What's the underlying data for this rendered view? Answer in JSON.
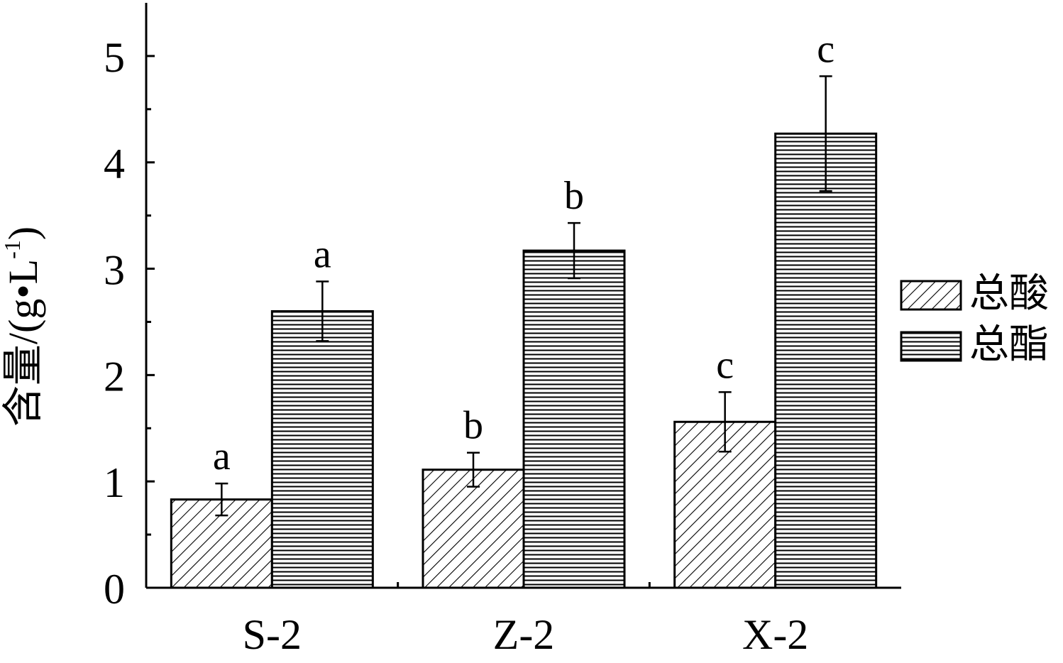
{
  "chart_data": {
    "type": "bar",
    "categories": [
      "S-2",
      "Z-2",
      "X-2"
    ],
    "series": [
      {
        "name": "总酸",
        "pattern": "diagonal-hatch",
        "values": [
          0.83,
          1.11,
          1.56
        ],
        "errors": [
          0.15,
          0.16,
          0.28
        ],
        "letters": [
          "a",
          "b",
          "c"
        ]
      },
      {
        "name": "总酯",
        "pattern": "horizontal-hatch",
        "values": [
          2.6,
          3.17,
          4.27
        ],
        "errors": [
          0.28,
          0.26,
          0.54
        ],
        "letters": [
          "a",
          "b",
          "c"
        ]
      }
    ],
    "ylabel": "含量/(g•L-1)",
    "ylabel_main": "含量/(g•L",
    "ylabel_sup": "-1",
    "ylabel_close": ")",
    "xlabel": "",
    "ylim": [
      0,
      5.5
    ],
    "yticks": [
      "0",
      "1",
      "2",
      "3",
      "4",
      "5"
    ],
    "grid": false,
    "legend_position": "right",
    "colors": {
      "stroke": "#000000",
      "background": "#ffffff"
    }
  }
}
